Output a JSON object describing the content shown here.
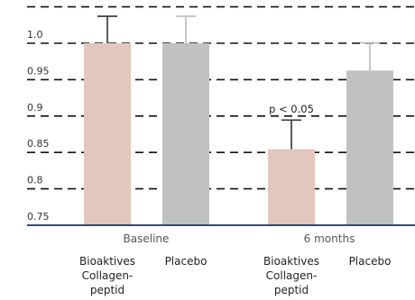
{
  "chart_data": {
    "type": "bar",
    "ylim": [
      0.75,
      1.05
    ],
    "yticks": [
      "0.75",
      "0.8",
      "0.85",
      "0.9",
      "0.95",
      "1.0"
    ],
    "grid": true,
    "groups": [
      {
        "label": "Baseline",
        "bars": [
          {
            "category": "Bioaktives Collagen- peptid",
            "lines": [
              "Bioaktives",
              "Collagen-",
              "peptid"
            ],
            "value": 1.0,
            "error": 0.037,
            "color": "#e2c7bd"
          },
          {
            "category": "Placebo",
            "lines": [
              "Placebo"
            ],
            "value": 1.0,
            "error": 0.037,
            "color": "#c0c2c1"
          }
        ]
      },
      {
        "label": "6 months",
        "bars": [
          {
            "category": "Bioaktives Collagen- peptid",
            "lines": [
              "Bioaktives",
              "Collagen-",
              "peptid"
            ],
            "value": 0.8545,
            "error": 0.04,
            "color": "#e2c7bd",
            "annotation": "p < 0.05"
          },
          {
            "category": "Placebo",
            "lines": [
              "Placebo"
            ],
            "value": 0.9625,
            "error": 0.038,
            "color": "#c0c2c1"
          }
        ]
      }
    ],
    "colors": {
      "axis": "#2e4a7a",
      "grid": "#111111",
      "error_bar_collagen": "#333333",
      "error_bar_placebo": "#bbbbbb"
    }
  }
}
